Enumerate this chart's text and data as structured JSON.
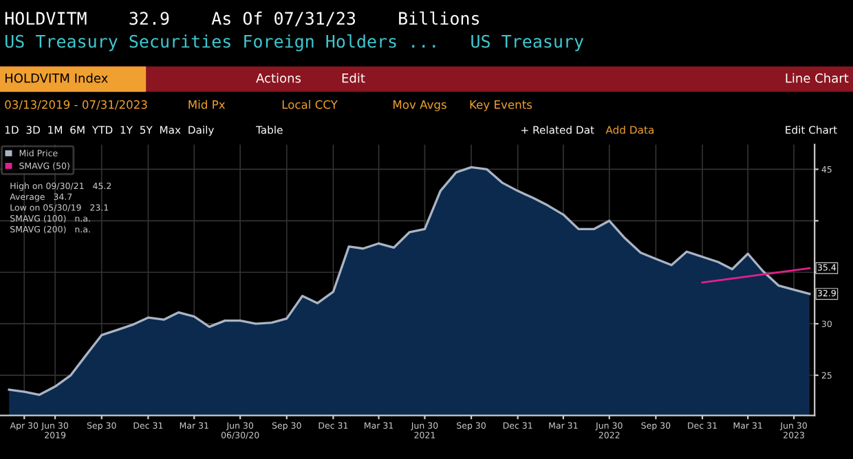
{
  "chart_data": {
    "type": "area",
    "title": "HOLDVITM    32.9    As Of 07/31/23    Billions",
    "subtitle": "US Treasury Securities Foreign Holders ...   US Treasury",
    "x": [
      "2019-03-31",
      "2019-04-30",
      "2019-05-30",
      "2019-06-30",
      "2019-07-31",
      "2019-08-31",
      "2019-09-30",
      "2019-10-31",
      "2019-11-30",
      "2019-12-31",
      "2020-01-31",
      "2020-02-29",
      "2020-03-31",
      "2020-04-30",
      "2020-05-31",
      "2020-06-30",
      "2020-07-31",
      "2020-08-31",
      "2020-09-30",
      "2020-10-31",
      "2020-11-30",
      "2020-12-31",
      "2021-01-31",
      "2021-02-28",
      "2021-03-31",
      "2021-04-30",
      "2021-05-31",
      "2021-06-30",
      "2021-07-31",
      "2021-08-31",
      "2021-09-30",
      "2021-10-31",
      "2021-11-30",
      "2021-12-31",
      "2022-01-31",
      "2022-02-28",
      "2022-03-31",
      "2022-04-30",
      "2022-05-31",
      "2022-06-30",
      "2022-07-31",
      "2022-08-31",
      "2022-09-30",
      "2022-10-31",
      "2022-11-30",
      "2022-12-31",
      "2023-01-31",
      "2023-02-28",
      "2023-03-31",
      "2023-04-30",
      "2023-05-31",
      "2023-06-30",
      "2023-07-31"
    ],
    "series": [
      {
        "name": "Mid Price",
        "color": "#aab4c4",
        "values": [
          23.6,
          23.4,
          23.1,
          23.9,
          25.0,
          27.0,
          28.9,
          29.4,
          29.9,
          30.6,
          30.4,
          31.1,
          30.7,
          29.7,
          30.3,
          30.3,
          30.0,
          30.1,
          30.5,
          32.7,
          32.0,
          33.1,
          37.5,
          37.3,
          37.8,
          37.4,
          38.9,
          39.2,
          42.9,
          44.7,
          45.2,
          45.0,
          43.7,
          42.9,
          42.2,
          41.5,
          40.6,
          39.2,
          39.2,
          40.0,
          38.3,
          36.9,
          36.3,
          35.7,
          37.0,
          36.5,
          36.0,
          35.3,
          36.8,
          35.1,
          33.7,
          33.3,
          32.9
        ]
      },
      {
        "name": "SMAVG (50)",
        "color": "#e0208c",
        "type": "line",
        "x": [
          "2022-12-31",
          "2023-07-31"
        ],
        "values": [
          34.0,
          35.4
        ]
      }
    ],
    "xlim": [
      "2019-03-13",
      "2023-08-10"
    ],
    "xticks": [
      {
        "value": "2019-04-30",
        "label": "Apr 30"
      },
      {
        "value": "2019-06-30",
        "label": "Jun 30\n2019"
      },
      {
        "value": "2019-09-30",
        "label": "Sep 30"
      },
      {
        "value": "2019-12-31",
        "label": "Dec 31"
      },
      {
        "value": "2020-03-31",
        "label": "Mar 31"
      },
      {
        "value": "2020-06-30",
        "label": "Jun 30\n06/30/20"
      },
      {
        "value": "2020-09-30",
        "label": "Sep 30"
      },
      {
        "value": "2020-12-31",
        "label": "Dec 31"
      },
      {
        "value": "2021-03-31",
        "label": "Mar 31"
      },
      {
        "value": "2021-06-30",
        "label": "Jun 30\n2021"
      },
      {
        "value": "2021-09-30",
        "label": "Sep 30"
      },
      {
        "value": "2021-12-31",
        "label": "Dec 31"
      },
      {
        "value": "2022-03-31",
        "label": "Mar 31"
      },
      {
        "value": "2022-06-30",
        "label": "Jun 30\n2022"
      },
      {
        "value": "2022-09-30",
        "label": "Sep 30"
      },
      {
        "value": "2022-12-31",
        "label": "Dec 31"
      },
      {
        "value": "2023-03-31",
        "label": "Mar 31"
      },
      {
        "value": "2023-06-30",
        "label": "Jun 30\n2023"
      }
    ],
    "ylim": [
      21.1,
      47.4
    ],
    "yticks": [
      25,
      30,
      {
        "value": 35,
        "label": null
      },
      {
        "value": 40,
        "label": null
      },
      45
    ],
    "grid": true,
    "legend": "top left",
    "annotations": [
      "High on 09/30/21   45.2",
      "Average   34.7",
      "Low on 05/30/19   23.1",
      "SMAVG (100)   n.a.",
      "SMAVG (200)   n.a.",
      "HOLDVITM Index",
      "Actions",
      "Edit",
      "Line Chart",
      "03/13/2019 - 07/31/2023",
      "Mid Px",
      "Local CCY",
      "Mov Avgs",
      "Key Events",
      "1D  3D  1M  6M  YTD  1Y  5Y  Max  Daily",
      "Table",
      "+ Related Dat",
      "Add Data",
      "Edit Chart",
      {
        "text": "32.9",
        "x": "2023-07-31",
        "y": 32.9
      },
      {
        "text": "35.4",
        "x": "2023-07-31",
        "y": 35.4
      }
    ]
  }
}
